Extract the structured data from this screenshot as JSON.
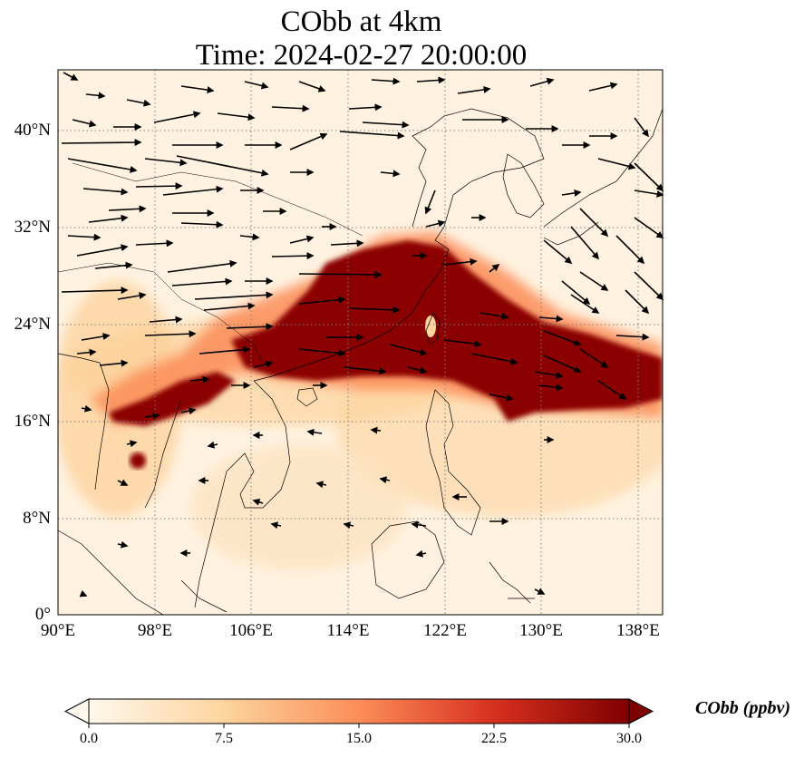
{
  "title_line1": "CObb at 4km",
  "title_line2": "Time: 2024-02-27 20:00:00",
  "map": {
    "lon_range": [
      90,
      140
    ],
    "lat_range": [
      0,
      45
    ],
    "lon_ticks": [
      "90°E",
      "98°E",
      "106°E",
      "114°E",
      "122°E",
      "130°E",
      "138°E"
    ],
    "lat_ticks": [
      "0°",
      "8°N",
      "16°N",
      "24°N",
      "32°N",
      "40°N"
    ],
    "gridlines": "dotted"
  },
  "colorbar": {
    "title": "CObb (ppbv)",
    "ticks": [
      "0.0",
      "7.5",
      "15.0",
      "22.5",
      "30.0"
    ],
    "colormap": "OrRd",
    "colors": [
      "#fff7ec",
      "#fdd49e",
      "#fc8d59",
      "#d7301f",
      "#7f0000"
    ],
    "extend": "both"
  }
}
